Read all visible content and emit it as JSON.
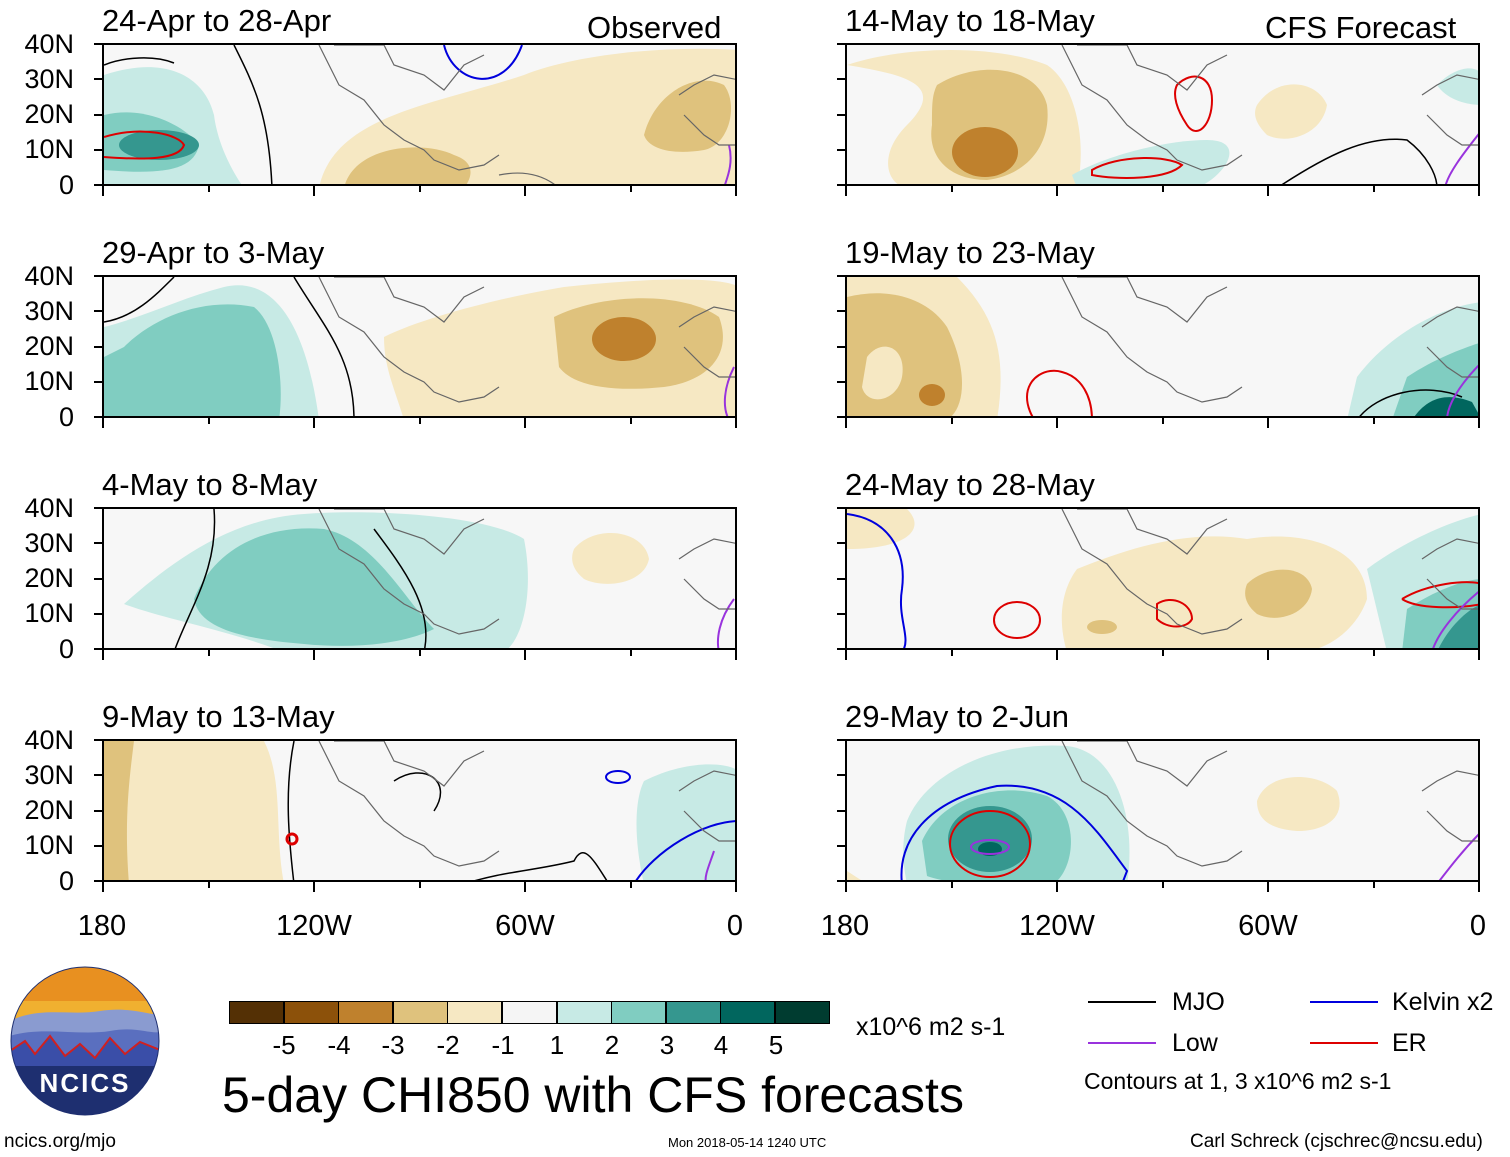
{
  "tags": {
    "observed": "Observed",
    "forecast": "CFS Forecast"
  },
  "panels": {
    "p1": "24-Apr to 28-Apr",
    "p2": "29-Apr to 3-May",
    "p3": "4-May to 8-May",
    "p4": "9-May to 13-May",
    "p5": "14-May to 18-May",
    "p6": "19-May to 23-May",
    "p7": "24-May to 28-May",
    "p8": "29-May to 2-Jun"
  },
  "lat_labels": [
    "40N",
    "30N",
    "20N",
    "10N",
    "0"
  ],
  "lon_labels": [
    "180",
    "120W",
    "60W",
    "0"
  ],
  "colorbar": {
    "colors": [
      "#543005",
      "#8c510a",
      "#bf812d",
      "#dfc27d",
      "#f6e8c3",
      "#f5f5f5",
      "#c7eae5",
      "#80cdc1",
      "#35978f",
      "#01665e",
      "#003c30"
    ],
    "labels": [
      "-5",
      "-4",
      "-3",
      "-2",
      "-1",
      "1",
      "2",
      "3",
      "4",
      "5"
    ],
    "units": "x10^6 m2 s-1"
  },
  "main_title": "5-day CHI850 with CFS forecasts",
  "legend": {
    "mjo": {
      "label": "MJO",
      "color": "#000000"
    },
    "kelvin": {
      "label": "Kelvin x2",
      "color": "#0000dd"
    },
    "low": {
      "label": "Low",
      "color": "#9933dd"
    },
    "er": {
      "label": "ER",
      "color": "#dd0000"
    },
    "note": "Contours at 1, 3 x10^6 m2 s-1"
  },
  "logo": {
    "text": "NCICS"
  },
  "footer": {
    "url": "ncics.org/mjo",
    "timestamp": "Mon 2018-05-14 1240 UTC",
    "author": "Carl Schreck (cjschrec@ncsu.edu)"
  }
}
